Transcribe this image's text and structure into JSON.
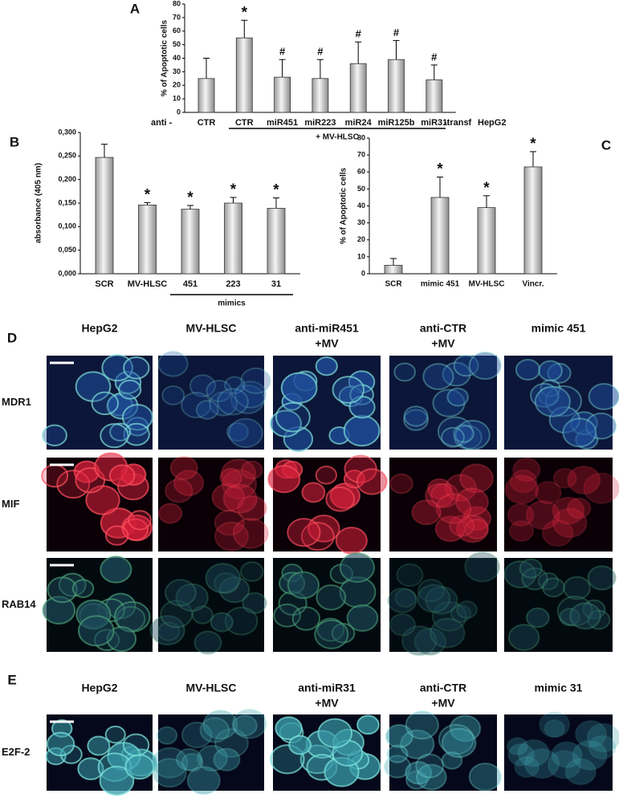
{
  "chart_data": [
    {
      "type": "bar",
      "panel_label": "A",
      "ylabel": "% of Apoptotic cells",
      "prefix_label": "anti -",
      "suffix_label": "-transf",
      "cell_label": "HepG2",
      "group_label": "+ MV-HLSC",
      "categories": [
        "CTR",
        "CTR",
        "miR451",
        "miR223",
        "miR24",
        "miR125b",
        "miR31"
      ],
      "values": [
        25,
        55,
        26,
        25,
        36,
        39,
        24
      ],
      "errors": [
        15,
        13,
        13,
        14,
        16,
        14,
        11
      ],
      "annotations": [
        null,
        "*",
        "#",
        "#",
        "#",
        "#",
        "#"
      ],
      "ylim": [
        0,
        80
      ],
      "yticks": [
        0,
        10,
        20,
        30,
        40,
        50,
        60,
        70,
        80
      ]
    },
    {
      "type": "bar",
      "panel_label": "B",
      "ylabel": "absorbance (405 nm)",
      "group_label": "mimics",
      "categories": [
        "SCR",
        "MV-HLSC",
        "451",
        "223",
        "31"
      ],
      "values": [
        0.247,
        0.146,
        0.137,
        0.15,
        0.139
      ],
      "errors": [
        0.028,
        0.005,
        0.008,
        0.012,
        0.022
      ],
      "annotations": [
        null,
        "*",
        "*",
        "*",
        "*"
      ],
      "ylim": [
        0,
        0.3
      ],
      "yticks": [
        {
          "value": 0,
          "label": "0,000"
        },
        {
          "value": 0.05,
          "label": "0,050"
        },
        {
          "value": 0.1,
          "label": "0,100"
        },
        {
          "value": 0.15,
          "label": "0,150"
        },
        {
          "value": 0.2,
          "label": "0,200"
        },
        {
          "value": 0.25,
          "label": "0,250"
        },
        {
          "value": 0.3,
          "label": "0,300"
        }
      ]
    },
    {
      "type": "bar",
      "panel_label": "C",
      "ylabel": "% of Apoptotic cells",
      "categories": [
        "SCR",
        "mimic 451",
        "MV-HLSC",
        "Vincr."
      ],
      "values": [
        5,
        45,
        39,
        63
      ],
      "errors": [
        4,
        12,
        7,
        9
      ],
      "annotations": [
        null,
        "*",
        "*",
        "*"
      ],
      "ylim": [
        0,
        80
      ],
      "yticks": [
        0,
        10,
        20,
        30,
        40,
        50,
        60,
        70,
        80
      ]
    }
  ],
  "panels": {
    "D": {
      "label": "D",
      "headers": [
        [
          "HepG2"
        ],
        [
          "MV-HLSC"
        ],
        [
          "anti-miR451",
          "+MV"
        ],
        [
          "anti-CTR",
          "+MV"
        ],
        [
          "mimic 451"
        ]
      ],
      "rows": [
        "MDR1",
        "MIF",
        "RAB14"
      ]
    },
    "E": {
      "label": "E",
      "headers": [
        [
          "HepG2"
        ],
        [
          "MV-HLSC"
        ],
        [
          "anti-miR31",
          "+MV"
        ],
        [
          "anti-CTR",
          "+MV"
        ],
        [
          "mimic 31"
        ]
      ],
      "rows": [
        "E2F-2"
      ]
    }
  }
}
